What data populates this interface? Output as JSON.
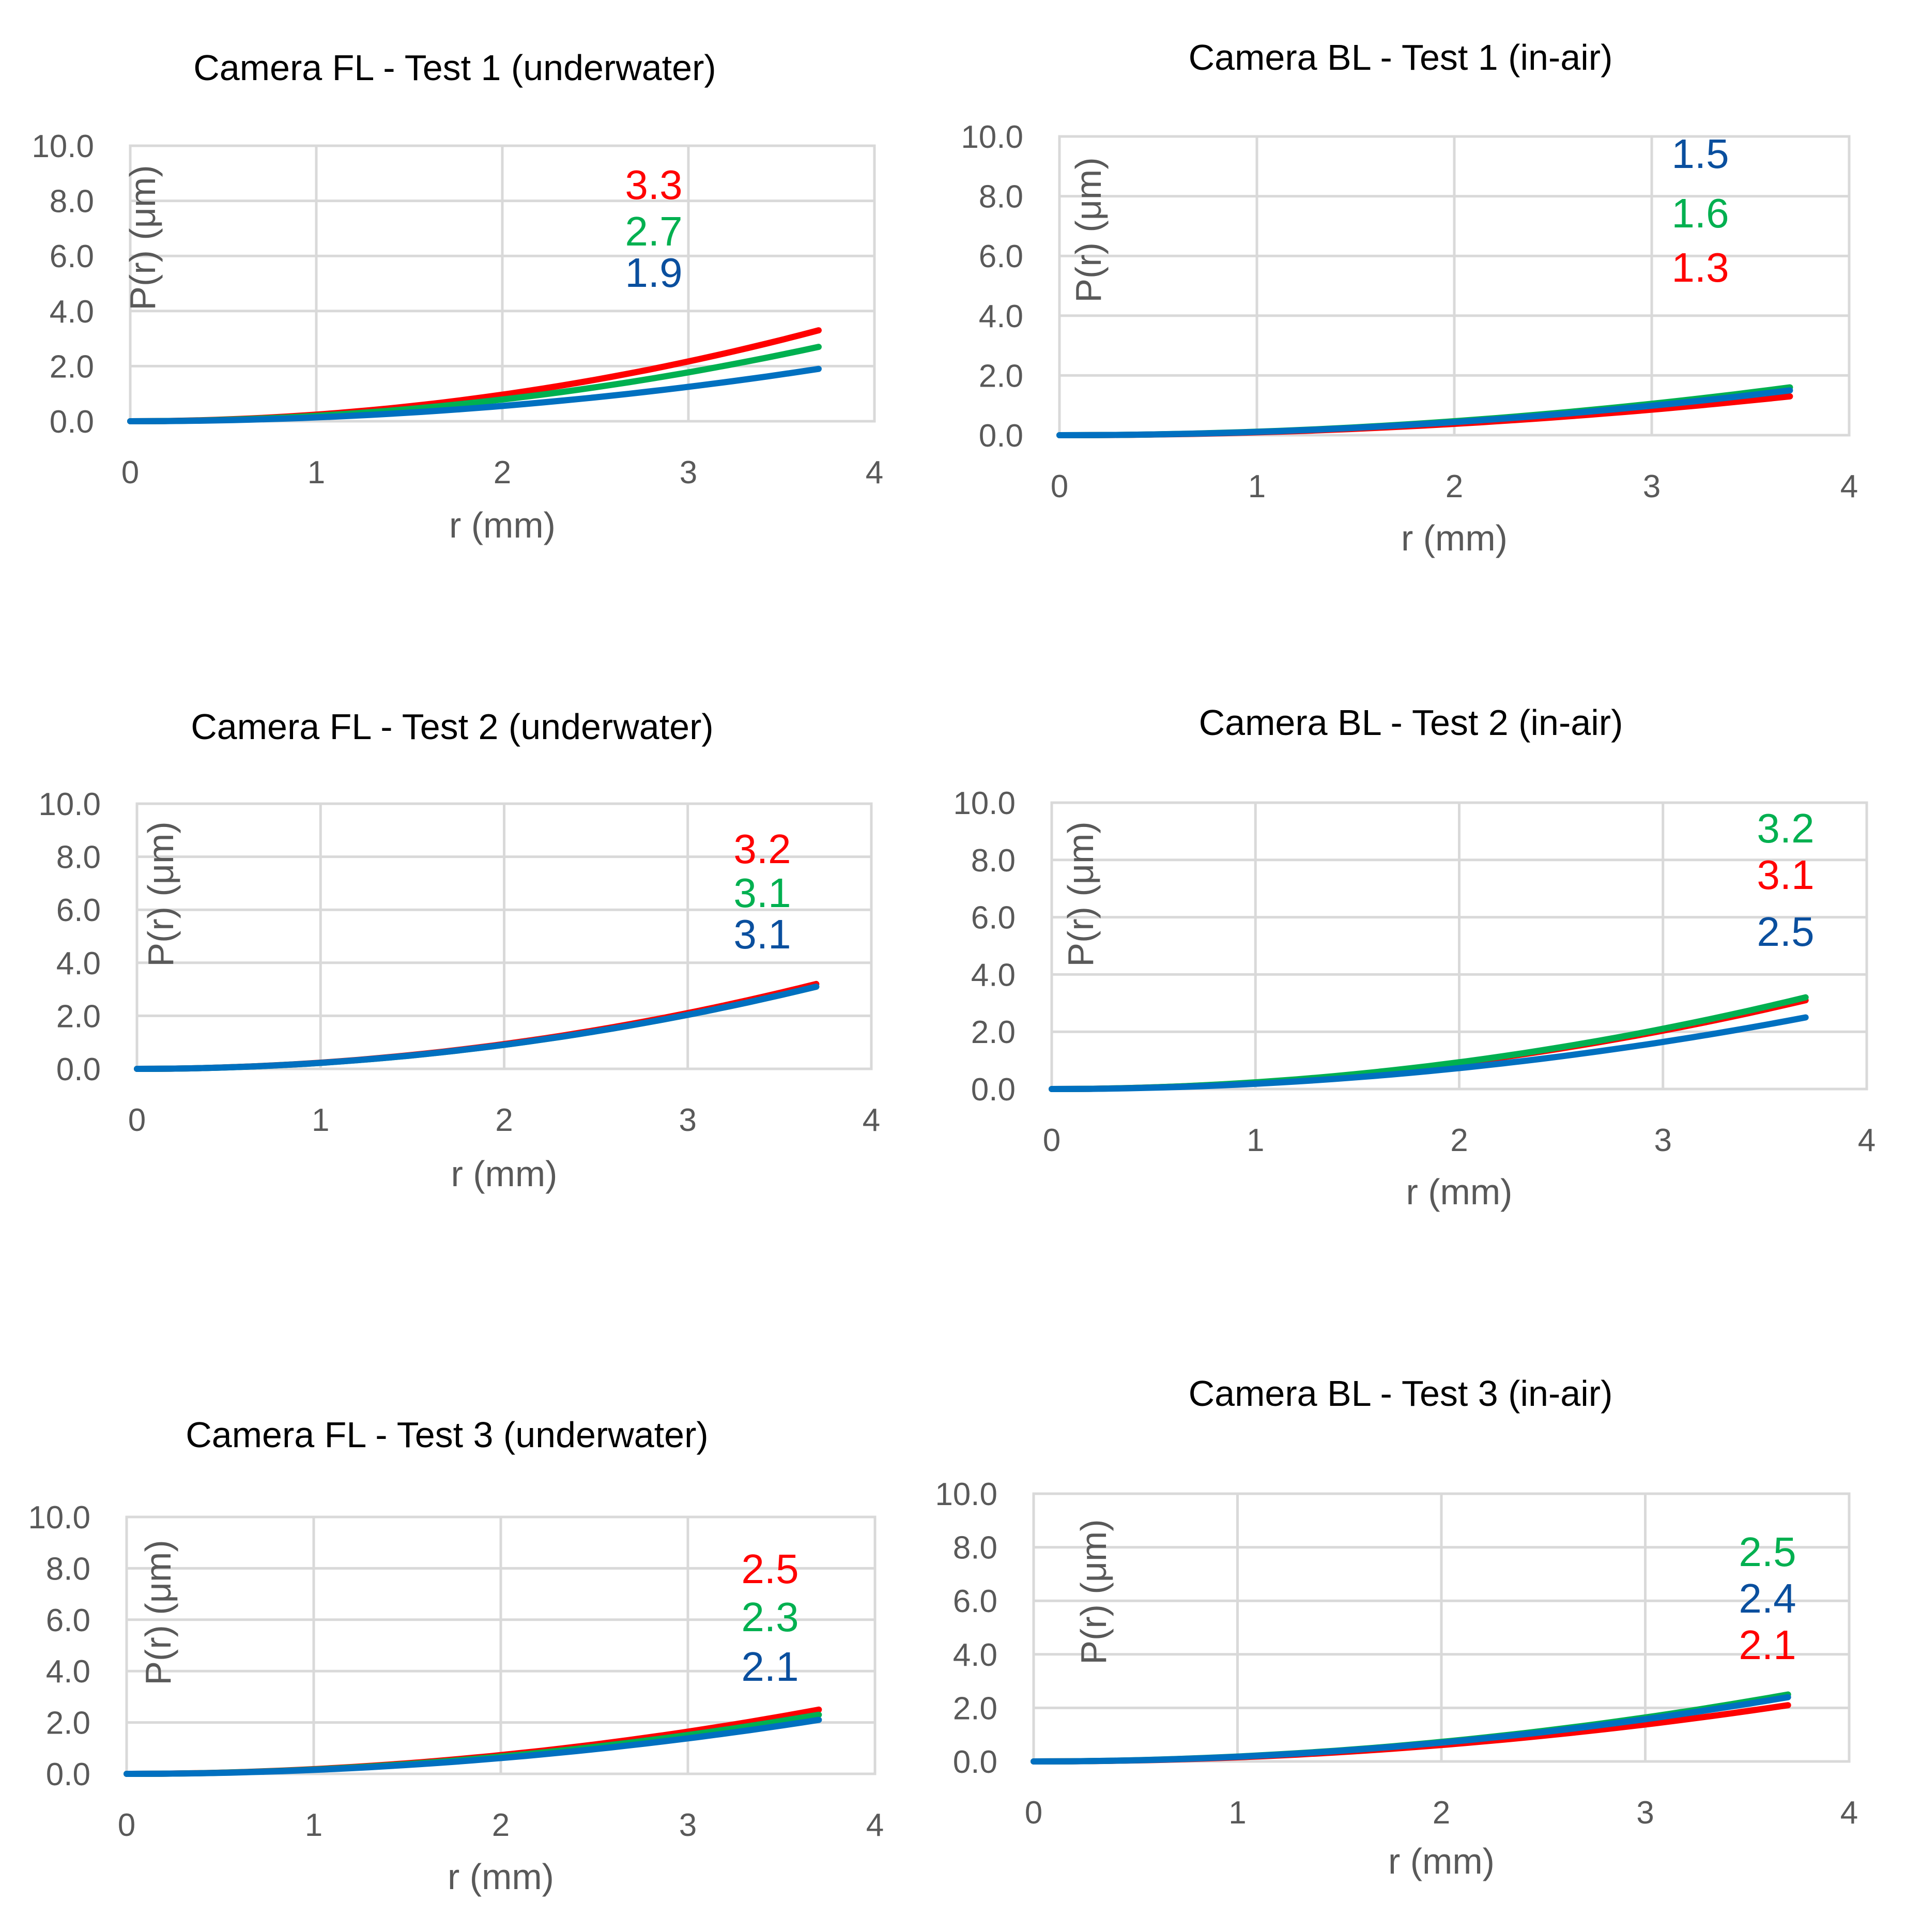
{
  "colors": {
    "red": "#ff0000",
    "green": "#00b050",
    "blue": "#0070c0",
    "blue_label": "#0a4f9e",
    "tick": "#595959",
    "grid": "#d9d9d9"
  },
  "chart_data": [
    {
      "type": "line",
      "title": "Camera FL - Test 1 (underwater)",
      "xlabel": "r (mm)",
      "ylabel": "P(r) (μm)",
      "xlim": [
        0,
        4
      ],
      "ylim": [
        0,
        10
      ],
      "xticks": [
        "0",
        "1",
        "2",
        "3",
        "4"
      ],
      "yticks": [
        "0.0",
        "2.0",
        "4.0",
        "6.0",
        "8.0",
        "10.0"
      ],
      "x_end": 3.7,
      "grid": true,
      "series": [
        {
          "name": "red",
          "color": "#ff0000",
          "end_value": 3.3,
          "label": "3.3"
        },
        {
          "name": "green",
          "color": "#00b050",
          "end_value": 2.7,
          "label": "2.7"
        },
        {
          "name": "blue",
          "color": "#0070c0",
          "end_value": 1.9,
          "label": "1.9"
        }
      ]
    },
    {
      "type": "line",
      "title": "Camera BL - Test 1 (in-air)",
      "xlabel": "r (mm)",
      "ylabel": "P(r) (μm)",
      "xlim": [
        0,
        4
      ],
      "ylim": [
        0,
        10
      ],
      "xticks": [
        "0",
        "1",
        "2",
        "3",
        "4"
      ],
      "yticks": [
        "0.0",
        "2.0",
        "4.0",
        "6.0",
        "8.0",
        "10.0"
      ],
      "x_end": 3.7,
      "grid": true,
      "series": [
        {
          "name": "blue",
          "color": "#0070c0",
          "end_value": 1.5,
          "label": "1.5"
        },
        {
          "name": "green",
          "color": "#00b050",
          "end_value": 1.6,
          "label": "1.6"
        },
        {
          "name": "red",
          "color": "#ff0000",
          "end_value": 1.3,
          "label": "1.3"
        }
      ]
    },
    {
      "type": "line",
      "title": "Camera FL - Test 2 (underwater)",
      "xlabel": "r (mm)",
      "ylabel": "P(r) (μm)",
      "xlim": [
        0,
        4
      ],
      "ylim": [
        0,
        10
      ],
      "xticks": [
        "0",
        "1",
        "2",
        "3",
        "4"
      ],
      "yticks": [
        "0.0",
        "2.0",
        "4.0",
        "6.0",
        "8.0",
        "10.0"
      ],
      "x_end": 3.7,
      "grid": true,
      "series": [
        {
          "name": "red",
          "color": "#ff0000",
          "end_value": 3.2,
          "label": "3.2"
        },
        {
          "name": "green",
          "color": "#00b050",
          "end_value": 3.1,
          "label": "3.1"
        },
        {
          "name": "blue",
          "color": "#0070c0",
          "end_value": 3.1,
          "label": "3.1"
        }
      ]
    },
    {
      "type": "line",
      "title": "Camera BL - Test 2 (in-air)",
      "xlabel": "r (mm)",
      "ylabel": "P(r) (μm)",
      "xlim": [
        0,
        4
      ],
      "ylim": [
        0,
        10
      ],
      "xticks": [
        "0",
        "1",
        "2",
        "3",
        "4"
      ],
      "yticks": [
        "0.0",
        "2.0",
        "4.0",
        "6.0",
        "8.0",
        "10.0"
      ],
      "x_end": 3.7,
      "grid": true,
      "series": [
        {
          "name": "green",
          "color": "#00b050",
          "end_value": 3.2,
          "label": "3.2"
        },
        {
          "name": "red",
          "color": "#ff0000",
          "end_value": 3.1,
          "label": "3.1"
        },
        {
          "name": "blue",
          "color": "#0070c0",
          "end_value": 2.5,
          "label": "2.5"
        }
      ]
    },
    {
      "type": "line",
      "title": "Camera FL - Test 3 (underwater)",
      "xlabel": "r (mm)",
      "ylabel": "P(r) (μm)",
      "xlim": [
        0,
        4
      ],
      "ylim": [
        0,
        10
      ],
      "xticks": [
        "0",
        "1",
        "2",
        "3",
        "4"
      ],
      "yticks": [
        "0.0",
        "2.0",
        "4.0",
        "6.0",
        "8.0",
        "10.0"
      ],
      "x_end": 3.7,
      "grid": true,
      "series": [
        {
          "name": "red",
          "color": "#ff0000",
          "end_value": 2.5,
          "label": "2.5"
        },
        {
          "name": "green",
          "color": "#00b050",
          "end_value": 2.3,
          "label": "2.3"
        },
        {
          "name": "blue",
          "color": "#0070c0",
          "end_value": 2.1,
          "label": "2.1"
        }
      ]
    },
    {
      "type": "line",
      "title": "Camera BL - Test 3 (in-air)",
      "xlabel": "r (mm)",
      "ylabel": "P(r) (μm)",
      "xlim": [
        0,
        4
      ],
      "ylim": [
        0,
        10
      ],
      "xticks": [
        "0",
        "1",
        "2",
        "3",
        "4"
      ],
      "yticks": [
        "0.0",
        "2.0",
        "4.0",
        "6.0",
        "8.0",
        "10.0"
      ],
      "x_end": 3.7,
      "grid": true,
      "series": [
        {
          "name": "green",
          "color": "#00b050",
          "end_value": 2.5,
          "label": "2.5"
        },
        {
          "name": "blue",
          "color": "#0070c0",
          "end_value": 2.4,
          "label": "2.4"
        },
        {
          "name": "red",
          "color": "#ff0000",
          "end_value": 2.1,
          "label": "2.1"
        }
      ]
    }
  ]
}
